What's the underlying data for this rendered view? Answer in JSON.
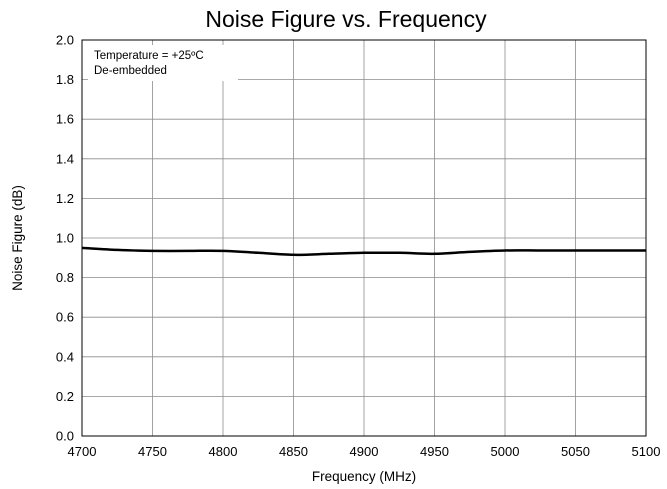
{
  "chart_data": {
    "type": "line",
    "title": "Noise Figure vs. Frequency",
    "xlabel": "Frequency (MHz)",
    "ylabel": "Noise Figure (dB)",
    "xlim": [
      4700,
      5100
    ],
    "ylim": [
      0.0,
      2.0
    ],
    "x_ticks": [
      "4700",
      "4750",
      "4800",
      "4850",
      "4900",
      "4950",
      "5000",
      "5050",
      "5100"
    ],
    "y_ticks": [
      "0.0",
      "0.2",
      "0.4",
      "0.6",
      "0.8",
      "1.0",
      "1.2",
      "1.4",
      "1.6",
      "1.8",
      "2.0"
    ],
    "grid": true,
    "annotations": [
      "Temperature = +25ºC",
      "De-embedded"
    ],
    "series": [
      {
        "color": "#000000",
        "x": [
          4700,
          4725,
          4750,
          4775,
          4800,
          4825,
          4850,
          4875,
          4900,
          4925,
          4950,
          4975,
          5000,
          5025,
          5050,
          5075,
          5100
        ],
        "y": [
          0.95,
          0.94,
          0.935,
          0.935,
          0.935,
          0.925,
          0.915,
          0.92,
          0.925,
          0.925,
          0.92,
          0.93,
          0.937,
          0.937,
          0.937,
          0.937,
          0.937
        ]
      }
    ]
  }
}
